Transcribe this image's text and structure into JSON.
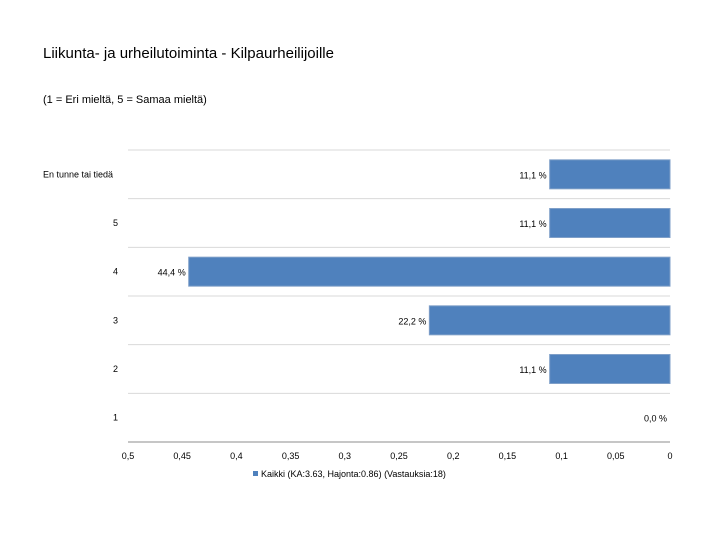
{
  "page": {
    "title": "Liikunta- ja urheilutoiminta - Kilpaurheilijoille",
    "subtitle": "(1 = Eri mieltä, 5 = Samaa mieltä)"
  },
  "chart_data": {
    "type": "bar",
    "orientation": "horizontal",
    "title": "Liikunta- ja urheilutoiminta - Kilpaurheilijoille",
    "subtitle": "(1 = Eri mieltä, 5 = Samaa mieltä)",
    "categories": [
      "En tunne tai tiedä",
      "5",
      "4",
      "3",
      "2",
      "1"
    ],
    "series": [
      {
        "name": "Kaikki (KA:3.63, Hajonta:0.86) (Vastauksia:18)",
        "values": [
          0.111,
          0.111,
          0.444,
          0.222,
          0.111,
          0.0
        ],
        "value_labels": [
          "11,1 %",
          "11,1 %",
          "44,4 %",
          "22,2 %",
          "11,1 %",
          "0,0 %"
        ],
        "color": "#4f81bd"
      }
    ],
    "xlim": [
      0.5,
      0
    ],
    "xaxis_reversed": true,
    "x_ticks": [
      0.5,
      0.45,
      0.4,
      0.35,
      0.3,
      0.25,
      0.2,
      0.15,
      0.1,
      0.05,
      0
    ],
    "x_tick_labels": [
      "0,5",
      "0,45",
      "0,4",
      "0,35",
      "0,3",
      "0,25",
      "0,2",
      "0,15",
      "0,1",
      "0,05",
      "0"
    ],
    "legend": {
      "position": "bottom",
      "label": "Kaikki (KA:3.63, Hajonta:0.86) (Vastauksia:18)"
    },
    "grid": true,
    "colors": {
      "bar": "#4f81bd",
      "grid": "#d9d9d9",
      "axis": "#8c8c8c"
    }
  }
}
